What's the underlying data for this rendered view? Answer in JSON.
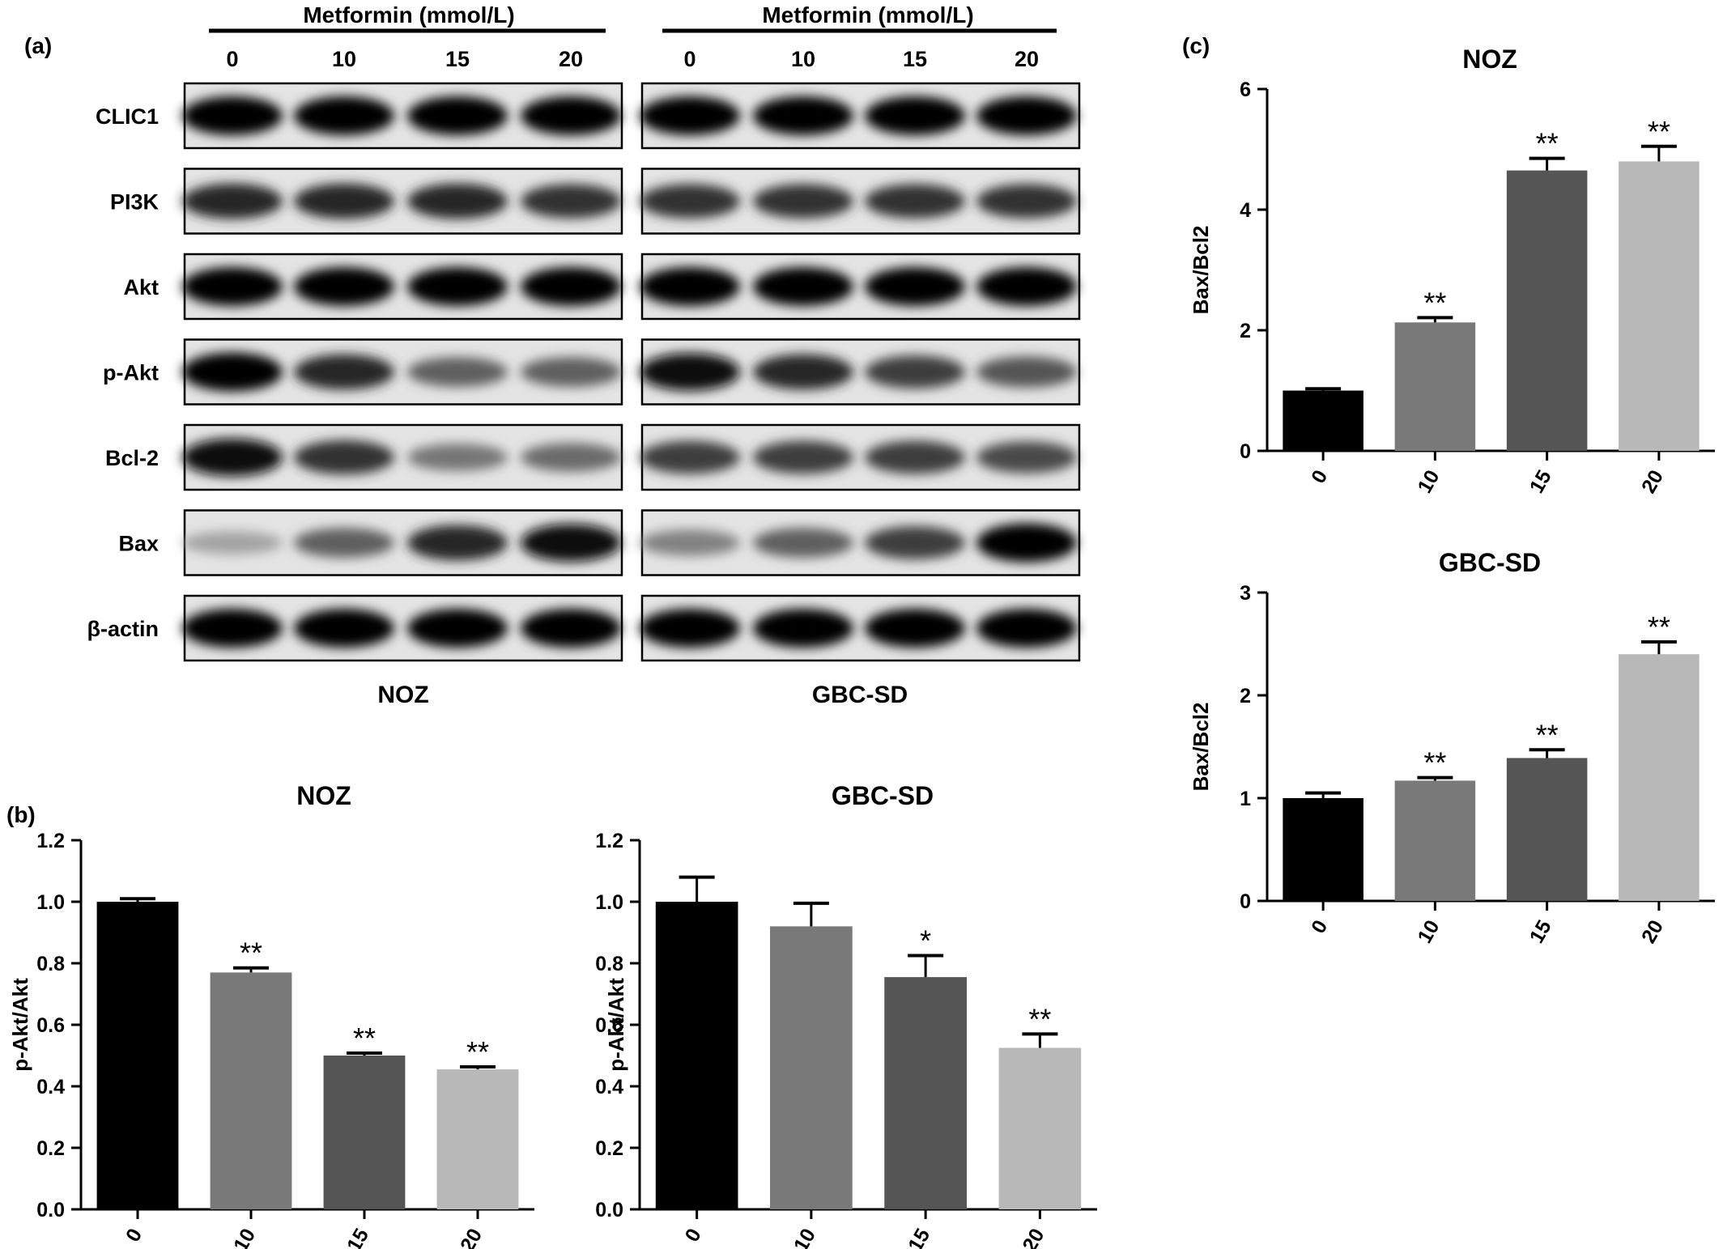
{
  "panels": {
    "a_label": "(a)",
    "b_label": "(b)",
    "c_label": "(c)"
  },
  "western_blot": {
    "groups": [
      {
        "name": "NOZ",
        "header": "Metformin (mmol/L)",
        "lanes": [
          "0",
          "10",
          "15",
          "20"
        ]
      },
      {
        "name": "GBC-SD",
        "header": "Metformin (mmol/L)",
        "lanes": [
          "0",
          "10",
          "15",
          "20"
        ]
      }
    ],
    "proteins": [
      "CLIC1",
      "PI3K",
      "Akt",
      "p-Akt",
      "Bcl-2",
      "Bax",
      "β-actin"
    ],
    "band_intensity": {
      "NOZ": [
        [
          1.0,
          1.0,
          1.0,
          1.0
        ],
        [
          0.85,
          0.85,
          0.85,
          0.8
        ],
        [
          1.0,
          1.0,
          1.0,
          1.0
        ],
        [
          1.0,
          0.85,
          0.6,
          0.6
        ],
        [
          0.95,
          0.8,
          0.5,
          0.55
        ],
        [
          0.3,
          0.6,
          0.85,
          0.95
        ],
        [
          1.0,
          1.0,
          1.0,
          1.0
        ]
      ],
      "GBC-SD": [
        [
          1.0,
          1.0,
          1.0,
          1.0
        ],
        [
          0.8,
          0.8,
          0.8,
          0.8
        ],
        [
          1.0,
          1.0,
          1.0,
          1.0
        ],
        [
          0.95,
          0.85,
          0.75,
          0.65
        ],
        [
          0.75,
          0.75,
          0.75,
          0.7
        ],
        [
          0.45,
          0.6,
          0.75,
          1.0
        ],
        [
          1.0,
          1.0,
          1.0,
          1.0
        ]
      ]
    }
  },
  "colors": {
    "bars": [
      "#000000",
      "#797979",
      "#555555",
      "#b8b8b8"
    ]
  },
  "chart_data": [
    {
      "id": "b-noz",
      "type": "bar",
      "title": "NOZ",
      "xlabel": "",
      "ylabel": "p-Akt/Akt",
      "categories": [
        "0",
        "10",
        "15",
        "20"
      ],
      "values": [
        1.0,
        0.77,
        0.5,
        0.455
      ],
      "errors": [
        0.01,
        0.015,
        0.008,
        0.008
      ],
      "annotations": [
        "",
        "**",
        "**",
        "**"
      ],
      "ylim": [
        0,
        1.2
      ],
      "yticks": [
        "0.0",
        "0.2",
        "0.4",
        "0.6",
        "0.8",
        "1.0",
        "1.2"
      ]
    },
    {
      "id": "b-gbc",
      "type": "bar",
      "title": "GBC-SD",
      "xlabel": "",
      "ylabel": "p-Akt/Akt",
      "categories": [
        "0",
        "10",
        "15",
        "20"
      ],
      "values": [
        1.0,
        0.92,
        0.755,
        0.525
      ],
      "errors": [
        0.08,
        0.075,
        0.07,
        0.045
      ],
      "annotations": [
        "",
        "",
        "*",
        "**"
      ],
      "ylim": [
        0,
        1.2
      ],
      "yticks": [
        "0.0",
        "0.2",
        "0.4",
        "0.6",
        "0.8",
        "1.0",
        "1.2"
      ]
    },
    {
      "id": "c-noz",
      "type": "bar",
      "title": "NOZ",
      "xlabel": "",
      "ylabel": "Bax/Bcl2",
      "categories": [
        "0",
        "10",
        "15",
        "20"
      ],
      "values": [
        1.0,
        2.13,
        4.65,
        4.8
      ],
      "errors": [
        0.03,
        0.08,
        0.2,
        0.25
      ],
      "annotations": [
        "",
        "**",
        "**",
        "**"
      ],
      "ylim": [
        0,
        6
      ],
      "yticks": [
        "0",
        "2",
        "4",
        "6"
      ]
    },
    {
      "id": "c-gbc",
      "type": "bar",
      "title": "GBC-SD",
      "xlabel": "",
      "ylabel": "Bax/Bcl2",
      "categories": [
        "0",
        "10",
        "15",
        "20"
      ],
      "values": [
        1.0,
        1.17,
        1.39,
        2.4
      ],
      "errors": [
        0.05,
        0.03,
        0.08,
        0.12
      ],
      "annotations": [
        "",
        "**",
        "**",
        "**"
      ],
      "ylim": [
        0,
        3
      ],
      "yticks": [
        "0",
        "1",
        "2",
        "3"
      ]
    }
  ]
}
